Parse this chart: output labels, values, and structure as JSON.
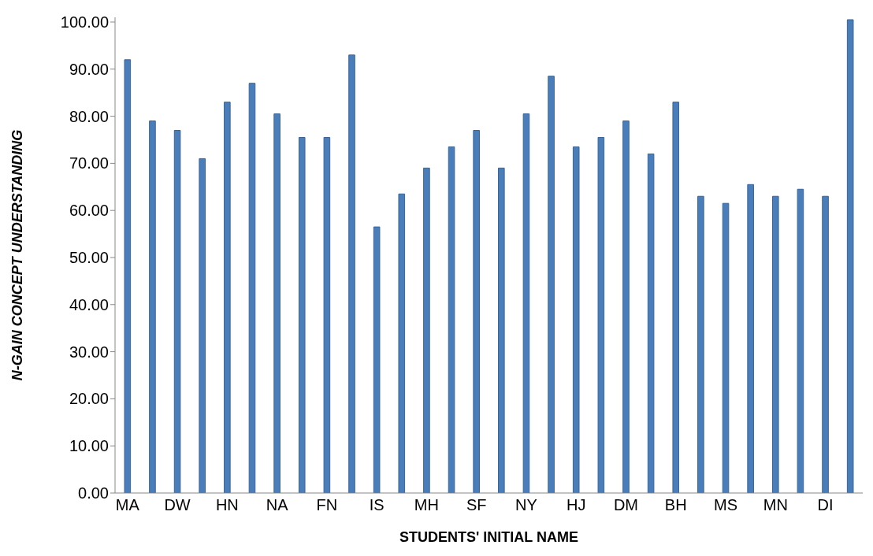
{
  "chart_data": {
    "type": "bar",
    "xlabel": "STUDENTS' INITIAL NAME",
    "ylabel": "N-GAIN CONCEPT UNDERSTANDING",
    "categories": [
      "MA",
      null,
      "DW",
      null,
      "HN",
      null,
      "NA",
      null,
      "FN",
      null,
      "IS",
      null,
      "MH",
      null,
      "SF",
      null,
      "NY",
      null,
      "HJ",
      null,
      "DM",
      null,
      "BH",
      null,
      "MS",
      null,
      "MN",
      null,
      "DI",
      null
    ],
    "values": [
      92,
      79,
      77,
      71,
      83,
      87,
      80.5,
      75.5,
      75.5,
      93,
      56.5,
      63.5,
      69,
      73.5,
      77,
      69,
      80.5,
      88.5,
      73.5,
      75.5,
      79,
      72,
      83,
      63,
      61.5,
      65.5,
      63,
      64.5,
      63,
      100.5
    ],
    "color": "#4a7ebb",
    "ylim": [
      0,
      101
    ],
    "yticks": [
      {
        "value": 0,
        "label": "0.00"
      },
      {
        "value": 10,
        "label": "10.00"
      },
      {
        "value": 20,
        "label": "20.00"
      },
      {
        "value": 30,
        "label": "30.00"
      },
      {
        "value": 40,
        "label": "40.00"
      },
      {
        "value": 50,
        "label": "50.00"
      },
      {
        "value": 60,
        "label": "60.00"
      },
      {
        "value": 70,
        "label": "70.00"
      },
      {
        "value": 80,
        "label": "80.00"
      },
      {
        "value": 90,
        "label": "90.00"
      },
      {
        "value": 100,
        "label": "100.00"
      }
    ],
    "grid": false,
    "legend": false
  }
}
